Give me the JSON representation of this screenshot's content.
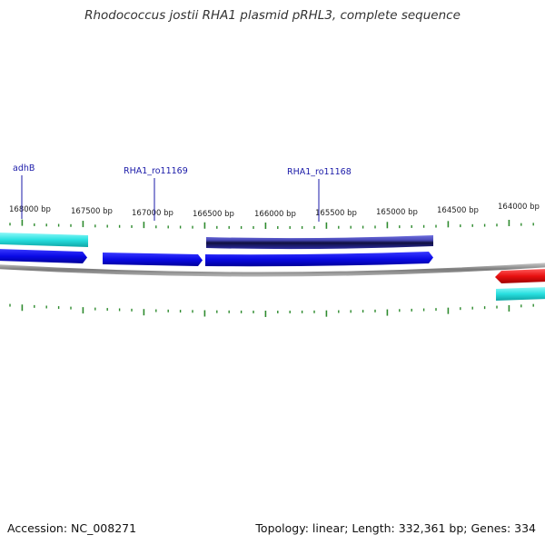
{
  "title": "Rhodococcus jostii RHA1 plasmid pRHL3, complete sequence",
  "footer": {
    "accession": "Accession: NC_008271",
    "summary": "Topology: linear; Length: 332,361 bp; Genes: 334"
  },
  "ruler_labels": [
    "168000 bp",
    "167500 bp",
    "167000 bp",
    "166500 bp",
    "166000 bp",
    "165500 bp",
    "165000 bp",
    "164500 bp",
    "164000 bp"
  ],
  "gene_labels": [
    "adhB",
    "RHA1_ro11169",
    "RHA1_ro11168"
  ],
  "colors": {
    "tick": "#2e8b2e",
    "backbone": "#8a8a8a",
    "cds": "#0a0ae6",
    "gene_cyan": "#28e0e0",
    "gene_navy": "#1a1a6e",
    "gene_red": "#e81010",
    "label_blue": "#1a1aa8"
  }
}
